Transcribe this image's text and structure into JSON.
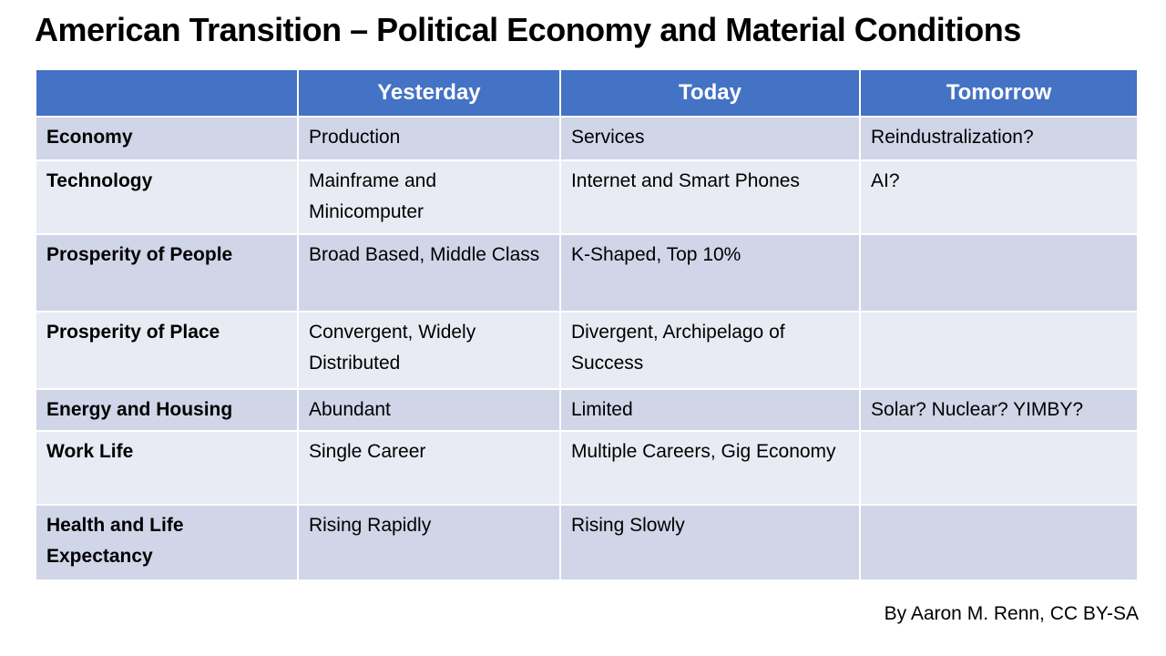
{
  "slide": {
    "title": "American Transition – Political Economy and Material Conditions",
    "attribution": "By Aaron M. Renn, CC BY-SA"
  },
  "table": {
    "columns": [
      "",
      "Yesterday",
      "Today",
      "Tomorrow"
    ],
    "rows": [
      {
        "label": "Economy",
        "yesterday": "Production",
        "today": "Services",
        "tomorrow": "Reindustralization?"
      },
      {
        "label": "Technology",
        "yesterday": "Mainframe and Minicomputer",
        "today": "Internet and Smart Phones",
        "tomorrow": "AI?"
      },
      {
        "label": "Prosperity of People",
        "yesterday": "Broad Based, Middle Class",
        "today": "K-Shaped, Top 10%",
        "tomorrow": ""
      },
      {
        "label": "Prosperity of Place",
        "yesterday": "Convergent, Widely Distributed",
        "today": "Divergent, Archipelago of Success",
        "tomorrow": ""
      },
      {
        "label": "Energy and Housing",
        "yesterday": "Abundant",
        "today": "Limited",
        "tomorrow": "Solar? Nuclear? YIMBY?"
      },
      {
        "label": "Work Life",
        "yesterday": "Single Career",
        "today": "Multiple Careers, Gig Economy",
        "tomorrow": ""
      },
      {
        "label": "Health and Life Expectancy",
        "yesterday": "Rising Rapidly",
        "today": "Rising Slowly",
        "tomorrow": ""
      }
    ]
  },
  "colors": {
    "header_bg": "#4472C4",
    "header_text": "#FFFFFF",
    "band_dark": "#D0D5E8",
    "band_light": "#E9EBF4",
    "body_text": "#000000",
    "slide_bg": "#FFFFFF"
  }
}
